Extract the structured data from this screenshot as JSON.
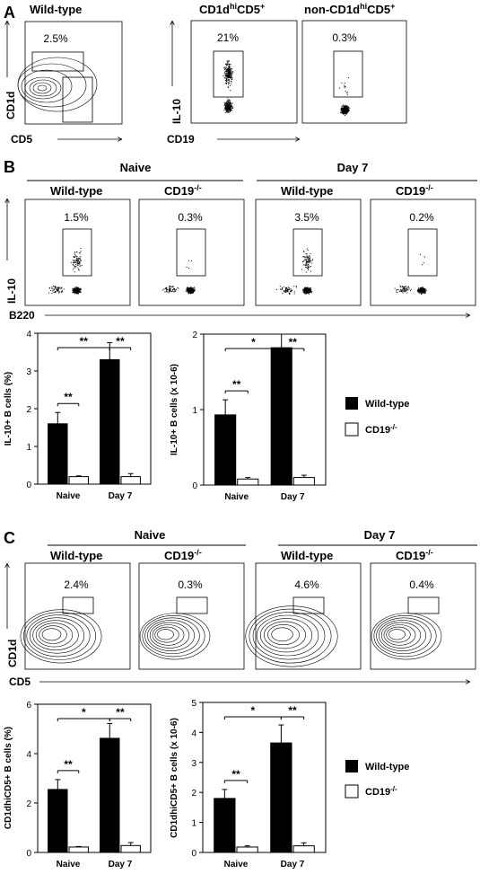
{
  "panelA": {
    "letter": "A",
    "wildtype_title": "Wild-type",
    "wildtype_pct": "2.5%",
    "xlabel": "CD5",
    "ylabel": "CD1d",
    "cd1dhi_title": "CD1d",
    "cd1dhi_sup1": "hi",
    "cd1dhi_mid": "CD5",
    "cd1dhi_sup2": "+",
    "cd1dhi_pct": "21%",
    "non_title": "non-CD1d",
    "non_sup1": "hi",
    "non_mid": "CD5",
    "non_sup2": "+",
    "non_pct": "0.3%",
    "x2label": "CD19",
    "y2label": "IL-10"
  },
  "panelB": {
    "letter": "B",
    "group_naive": "Naive",
    "group_day7": "Day 7",
    "col_labels": [
      "Wild-type",
      "CD19",
      "Wild-type",
      "CD19"
    ],
    "ko_sup": "-/-",
    "percents": [
      "1.5%",
      "0.3%",
      "3.5%",
      "0.2%"
    ],
    "flow_ylabel": "IL-10",
    "flow_xlabel": "B220"
  },
  "panelC": {
    "letter": "C",
    "group_naive": "Naive",
    "group_day7": "Day 7",
    "col_labels": [
      "Wild-type",
      "CD19",
      "Wild-type",
      "CD19"
    ],
    "ko_sup": "-/-",
    "percents": [
      "2.4%",
      "0.3%",
      "4.6%",
      "0.4%"
    ],
    "flow_ylabel": "CD1d",
    "flow_xlabel": "CD5"
  },
  "legend": {
    "wildtype": "Wild-type",
    "ko": "CD19",
    "ko_sup": "-/-"
  },
  "chart_data": [
    {
      "type": "bar",
      "panel": "B-left",
      "ylabel": "IL-10+ B cells (%)",
      "categories": [
        "Naive",
        "Day 7"
      ],
      "ylim": [
        0,
        4
      ],
      "yticks": [
        0,
        1,
        2,
        3,
        4
      ],
      "series": [
        {
          "name": "Wild-type",
          "values": [
            1.6,
            3.3
          ],
          "errors": [
            0.3,
            0.45
          ]
        },
        {
          "name": "CD19-/-",
          "values": [
            0.2,
            0.2
          ],
          "errors": [
            0.02,
            0.08
          ]
        }
      ],
      "significance": [
        "**",
        "**",
        "**"
      ]
    },
    {
      "type": "bar",
      "panel": "B-right",
      "ylabel": "IL-10+ B cells (x 10-6)",
      "categories": [
        "Naive",
        "Day 7"
      ],
      "ylim": [
        0,
        2
      ],
      "yticks": [
        0,
        1,
        2
      ],
      "series": [
        {
          "name": "Wild-type",
          "values": [
            0.93,
            1.82
          ],
          "errors": [
            0.2,
            0.18
          ]
        },
        {
          "name": "CD19-/-",
          "values": [
            0.08,
            0.1
          ],
          "errors": [
            0.02,
            0.03
          ]
        }
      ],
      "significance": [
        "**",
        "*",
        "**"
      ]
    },
    {
      "type": "bar",
      "panel": "C-left",
      "ylabel": "CD1dhiCD5+ B cells (%)",
      "categories": [
        "Naive",
        "Day 7"
      ],
      "ylim": [
        0,
        6
      ],
      "yticks": [
        0,
        2,
        4,
        6
      ],
      "series": [
        {
          "name": "Wild-type",
          "values": [
            2.55,
            4.62
          ],
          "errors": [
            0.4,
            0.6
          ]
        },
        {
          "name": "CD19-/-",
          "values": [
            0.22,
            0.28
          ],
          "errors": [
            0.02,
            0.12
          ]
        }
      ],
      "significance": [
        "**",
        "*",
        "**"
      ]
    },
    {
      "type": "bar",
      "panel": "C-right",
      "ylabel": "CD1dhiCD5+ B cells (x 10-6)",
      "categories": [
        "Naive",
        "Day 7"
      ],
      "ylim": [
        0,
        5
      ],
      "yticks": [
        0,
        1,
        2,
        3,
        4,
        5
      ],
      "series": [
        {
          "name": "Wild-type",
          "values": [
            1.8,
            3.65
          ],
          "errors": [
            0.3,
            0.6
          ]
        },
        {
          "name": "CD19-/-",
          "values": [
            0.18,
            0.22
          ],
          "errors": [
            0.04,
            0.1
          ]
        }
      ],
      "significance": [
        "**",
        "*",
        "**"
      ]
    }
  ]
}
